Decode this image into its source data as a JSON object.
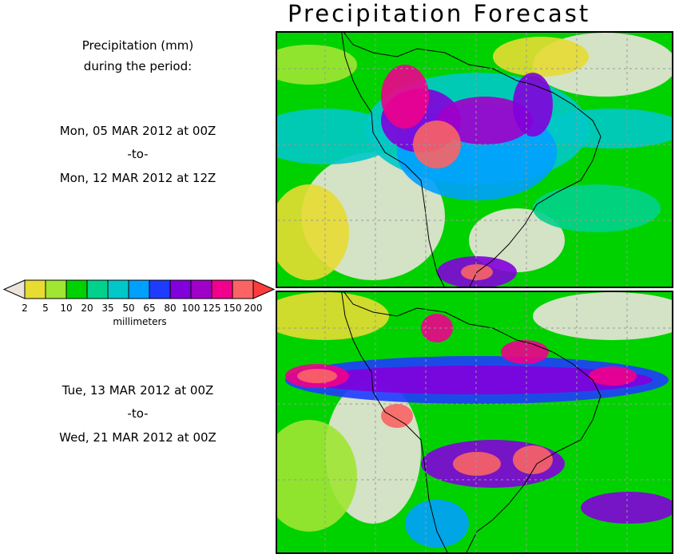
{
  "title": "Precipitation Forecast",
  "header_text": {
    "line1": "Precipitation (mm)",
    "line2": "during the period:"
  },
  "periods": [
    {
      "start": "Mon, 05 MAR 2012 at 00Z",
      "sep": "-to-",
      "end": "Mon, 12 MAR 2012 at 12Z"
    },
    {
      "start": "Tue, 13 MAR 2012 at 00Z",
      "sep": "-to-",
      "end": "Wed, 21 MAR 2012 at 00Z"
    }
  ],
  "legend": {
    "unit_label": "millimeters",
    "ticks": [
      "2",
      "5",
      "10",
      "20",
      "35",
      "50",
      "65",
      "80",
      "100",
      "125",
      "150",
      "200"
    ],
    "below_color": "#ebe3dc",
    "above_color": "#ff3c3c",
    "colors": [
      "#e6dc32",
      "#a0e632",
      "#00d200",
      "#00d28c",
      "#00c8c8",
      "#00a0ff",
      "#1e3cff",
      "#8200dc",
      "#a000c8",
      "#f0008c",
      "#fa6464"
    ]
  }
}
